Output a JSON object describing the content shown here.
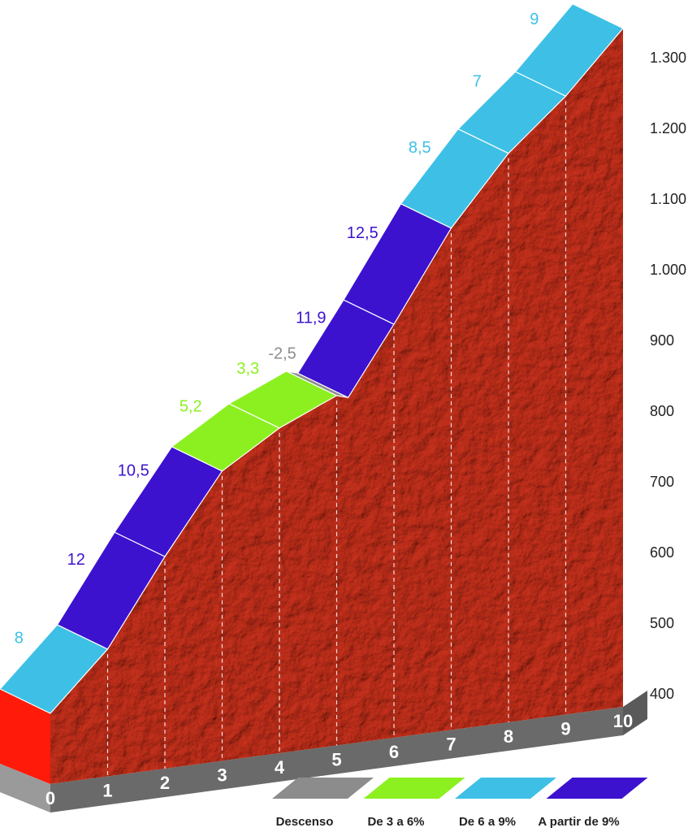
{
  "chart_data": {
    "type": "profile",
    "x": [
      0,
      1,
      2,
      3,
      4,
      5,
      5.2,
      6,
      7,
      8,
      9,
      10
    ],
    "elevation": [
      500,
      580,
      700,
      810,
      860,
      895,
      890,
      985,
      1110,
      1205,
      1275,
      1360
    ],
    "segments": {
      "values": [
        8,
        12,
        10.5,
        5.2,
        3.3,
        -2.5,
        11.9,
        12.5,
        8.5,
        7,
        9
      ],
      "value_labels": [
        "8",
        "12",
        "10,5",
        "5,2",
        "3,3",
        "-2,5",
        "11,9",
        "12,5",
        "8,5",
        "7",
        "9"
      ],
      "colors": [
        "#3ec0e6",
        "#3c12cf",
        "#3c12cf",
        "#8cf020",
        "#8cf020",
        "#8c8c8c",
        "#3c12cf",
        "#3c12cf",
        "#3ec0e6",
        "#3ec0e6",
        "#3ec0e6"
      ]
    },
    "xlim": [
      0,
      10
    ],
    "xticks": [
      0,
      1,
      2,
      3,
      4,
      5,
      6,
      7,
      8,
      9,
      10
    ],
    "ylim": [
      400,
      1300
    ],
    "yticks": [
      400,
      500,
      600,
      700,
      800,
      900,
      {
        "value": 1000,
        "label": "1.000"
      },
      {
        "value": 1100,
        "label": "1.100"
      },
      {
        "value": 1200,
        "label": "1.200"
      },
      {
        "value": 1300,
        "label": "1.300"
      }
    ],
    "legend": [
      {
        "name": "Descenso",
        "color": "#8c8c8c"
      },
      {
        "name": "De 3 a 6%",
        "color": "#8cf020"
      },
      {
        "name": "De 6 a 9%",
        "color": "#3ec0e6"
      },
      {
        "name": "A partir de 9%",
        "color": "#3c12cf"
      }
    ]
  }
}
